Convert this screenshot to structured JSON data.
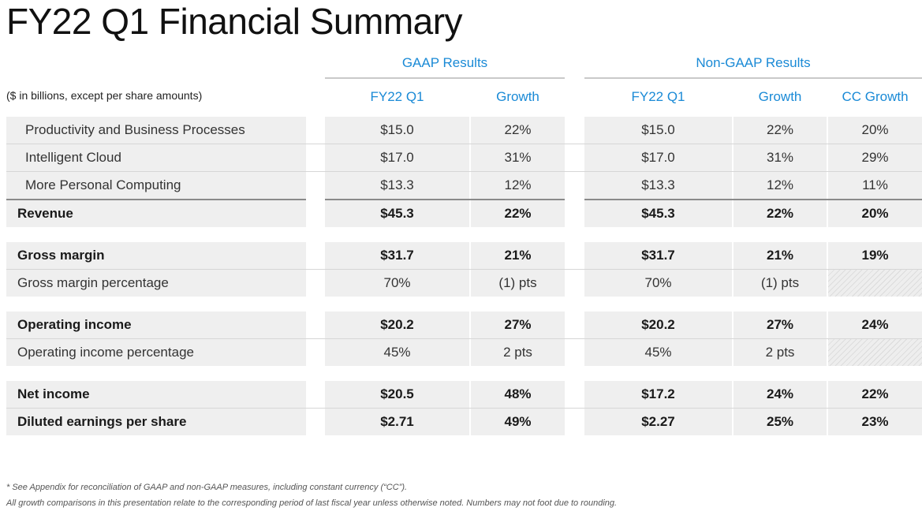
{
  "title": "FY22 Q1 Financial Summary",
  "groups": {
    "gaap": "GAAP Results",
    "non_gaap": "Non-GAAP Results"
  },
  "units_note": "($ in billions, except per share amounts)",
  "columns": {
    "gaap_fy": "FY22 Q1",
    "gaap_growth": "Growth",
    "ng_fy": "FY22 Q1",
    "ng_growth": "Growth",
    "ng_cc": "CC Growth"
  },
  "rows": [
    {
      "label": "Productivity and Business Processes",
      "gaap_fy": "$15.0",
      "gaap_growth": "22%",
      "ng_fy": "$15.0",
      "ng_growth": "22%",
      "ng_cc": "20%"
    },
    {
      "label": "Intelligent Cloud",
      "gaap_fy": "$17.0",
      "gaap_growth": "31%",
      "ng_fy": "$17.0",
      "ng_growth": "31%",
      "ng_cc": "29%"
    },
    {
      "label": "More Personal Computing",
      "gaap_fy": "$13.3",
      "gaap_growth": "12%",
      "ng_fy": "$13.3",
      "ng_growth": "12%",
      "ng_cc": "11%"
    },
    {
      "label": "Revenue",
      "gaap_fy": "$45.3",
      "gaap_growth": "22%",
      "ng_fy": "$45.3",
      "ng_growth": "22%",
      "ng_cc": "20%"
    },
    {
      "label": "Gross margin",
      "gaap_fy": "$31.7",
      "gaap_growth": "21%",
      "ng_fy": "$31.7",
      "ng_growth": "21%",
      "ng_cc": "19%"
    },
    {
      "label": "Gross margin percentage",
      "gaap_fy": "70%",
      "gaap_growth": "(1) pts",
      "ng_fy": "70%",
      "ng_growth": "(1) pts",
      "ng_cc": ""
    },
    {
      "label": "Operating income",
      "gaap_fy": "$20.2",
      "gaap_growth": "27%",
      "ng_fy": "$20.2",
      "ng_growth": "27%",
      "ng_cc": "24%"
    },
    {
      "label": "Operating income percentage",
      "gaap_fy": "45%",
      "gaap_growth": "2 pts",
      "ng_fy": "45%",
      "ng_growth": "2 pts",
      "ng_cc": ""
    },
    {
      "label": "Net income",
      "gaap_fy": "$20.5",
      "gaap_growth": "48%",
      "ng_fy": "$17.2",
      "ng_growth": "24%",
      "ng_cc": "22%"
    },
    {
      "label": "Diluted earnings per share",
      "gaap_fy": "$2.71",
      "gaap_growth": "49%",
      "ng_fy": "$2.27",
      "ng_growth": "25%",
      "ng_cc": "23%"
    }
  ],
  "footnotes": [
    "* See Appendix for reconciliation of GAAP and non-GAAP measures, including constant currency (“CC”).",
    "All growth comparisons in this presentation relate to the corresponding period of last fiscal year unless otherwise noted. Numbers may not foot due to rounding."
  ]
}
